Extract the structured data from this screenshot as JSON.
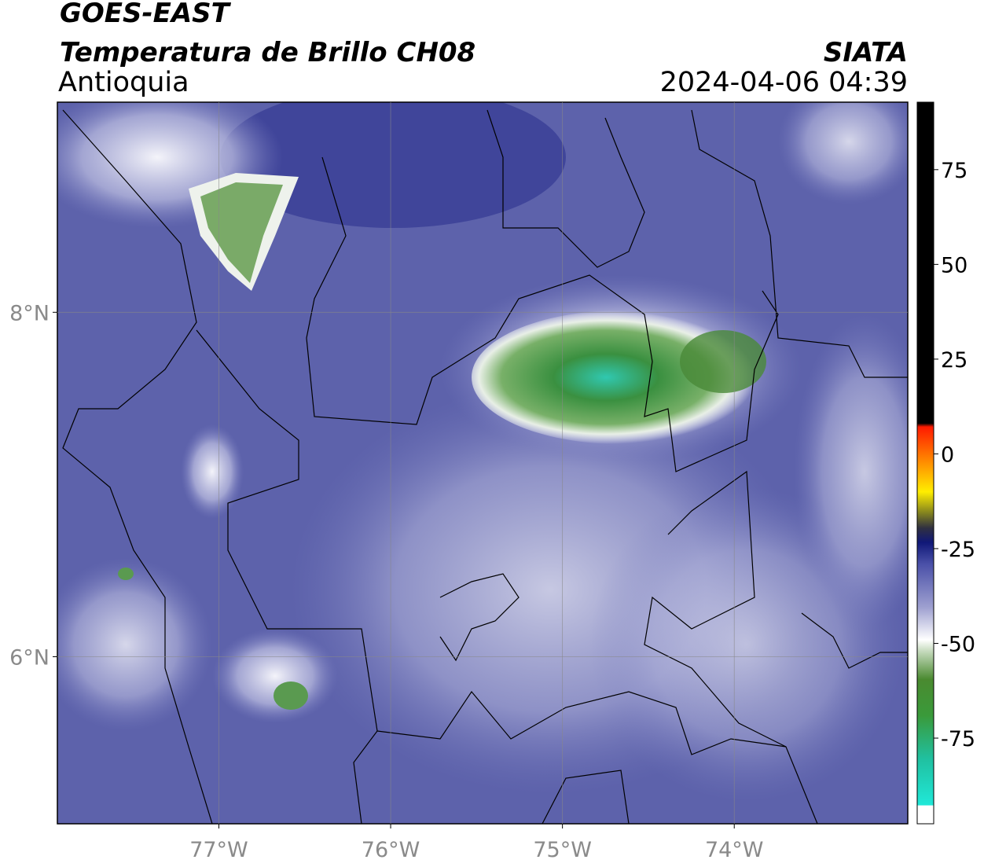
{
  "header": {
    "title": "GOES-EAST",
    "subtitle": "Temperatura de Brillo CH08",
    "region": "Antioquia",
    "source": "SIATA",
    "datetime": "2024-04-06 04:39"
  },
  "map": {
    "xlim": [
      -77.94,
      -72.99
    ],
    "ylim": [
      5.03,
      9.22
    ],
    "xticks": [
      {
        "value": -77,
        "label": "77°W"
      },
      {
        "value": -76,
        "label": "76°W"
      },
      {
        "value": -75,
        "label": "75°W"
      },
      {
        "value": -74,
        "label": "74°W"
      }
    ],
    "yticks": [
      {
        "value": 6,
        "label": "6°N"
      },
      {
        "value": 8,
        "label": "8°N"
      }
    ],
    "grid": true
  },
  "colorbar": {
    "lim": [
      -97.6,
      92.8
    ],
    "ticks": [
      -75,
      -50,
      -25,
      0,
      25,
      50,
      75
    ]
  }
}
